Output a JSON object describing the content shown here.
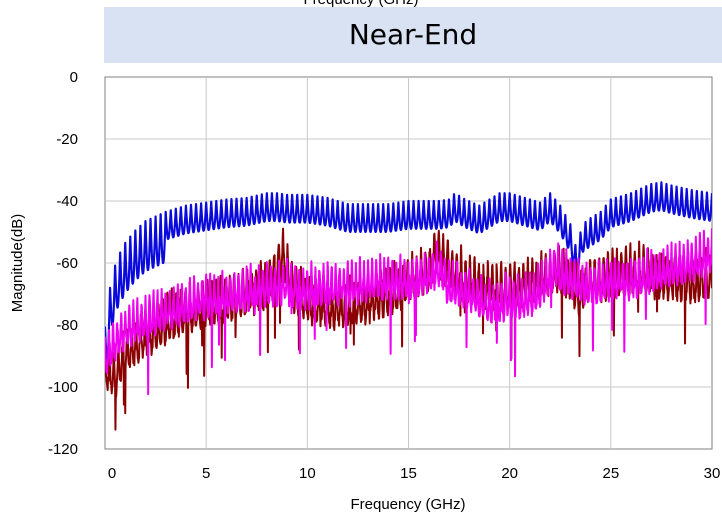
{
  "top_text_partial": "Frequency (GHz)",
  "chart_data": {
    "type": "line",
    "title": "Near-End",
    "xlabel": "Frequency (GHz)",
    "ylabel": "Magnitude(dB)",
    "xlim": [
      0,
      30
    ],
    "ylim": [
      -120,
      0
    ],
    "xticks": [
      0,
      5,
      10,
      15,
      20,
      25,
      30
    ],
    "xtick_labels": [
      "0",
      "5",
      "10",
      "15",
      "20",
      "25",
      "30"
    ],
    "yticks": [
      0,
      -20,
      -40,
      -60,
      -80,
      -100,
      -120
    ],
    "ytick_labels": [
      "0",
      "-20",
      "-40",
      "-60",
      "-80",
      "-100",
      "-120"
    ],
    "grid": true,
    "series": [
      {
        "color": "#0a0adc",
        "ripple_amp": 4.5,
        "ripple_period": 0.25,
        "x": [
          0,
          0.3,
          0.6,
          1,
          1.5,
          2,
          3,
          4,
          5,
          6,
          7,
          8,
          8.5,
          9,
          10,
          11,
          12,
          13,
          14,
          15,
          16,
          16.5,
          17,
          17.3,
          17.8,
          18.5,
          19.5,
          20,
          21,
          21.5,
          22,
          22.5,
          23,
          23.3,
          23.6,
          24,
          24.5,
          25,
          26,
          27,
          27.5,
          28,
          29,
          30
        ],
        "y": [
          -85,
          -70,
          -63,
          -58,
          -54,
          -51,
          -48,
          -46,
          -45,
          -44,
          -43.5,
          -42,
          -42,
          -42.5,
          -42.5,
          -43.5,
          -45.5,
          -45.5,
          -45.5,
          -44.5,
          -44.5,
          -44.5,
          -44,
          -42,
          -44,
          -46,
          -42,
          -42,
          -44,
          -45,
          -42,
          -46,
          -52,
          -60,
          -52,
          -50,
          -48,
          -44,
          -42,
          -39,
          -38.5,
          -39.5,
          -41,
          -42
        ]
      },
      {
        "color": "#8b0000",
        "ripple_amp": 7,
        "ripple_period": 0.22,
        "x": [
          0,
          0.5,
          1,
          2,
          3,
          4,
          5,
          6,
          7,
          8,
          8.8,
          9.2,
          10,
          11,
          12,
          13,
          13.8,
          14.5,
          15,
          16,
          16.4,
          16.8,
          17.5,
          18,
          19,
          20,
          21,
          22,
          22.3,
          23,
          23.5,
          24,
          25,
          26,
          27,
          28,
          29,
          30
        ],
        "y": [
          -90,
          -93,
          -85,
          -80,
          -75,
          -72,
          -70,
          -68,
          -66,
          -64,
          -53,
          -64,
          -68,
          -70,
          -70,
          -68,
          -66,
          -65,
          -62,
          -58,
          -52,
          -56,
          -60,
          -62,
          -64,
          -64,
          -62,
          -60,
          -58,
          -62,
          -66,
          -62,
          -60,
          -58,
          -60,
          -61,
          -62,
          -60
        ]
      },
      {
        "color": "#f000f0",
        "ripple_amp": 6,
        "ripple_period": 0.2,
        "x": [
          0,
          0.5,
          1,
          2,
          3,
          4,
          5,
          6,
          7,
          8,
          9,
          10,
          11,
          12,
          13,
          13.8,
          14.5,
          15,
          16,
          16.6,
          17,
          18,
          19,
          20,
          21,
          21.8,
          22.2,
          23,
          24,
          25,
          26,
          27,
          28,
          29,
          30
        ],
        "y": [
          -88,
          -82,
          -78,
          -75,
          -72,
          -70,
          -68,
          -67,
          -66,
          -64,
          -64,
          -65,
          -64,
          -64,
          -63,
          -62,
          -62,
          -62,
          -60,
          -58,
          -64,
          -66,
          -70,
          -68,
          -68,
          -62,
          -58,
          -62,
          -64,
          -62,
          -62,
          -60,
          -58,
          -56,
          -54
        ]
      }
    ]
  }
}
